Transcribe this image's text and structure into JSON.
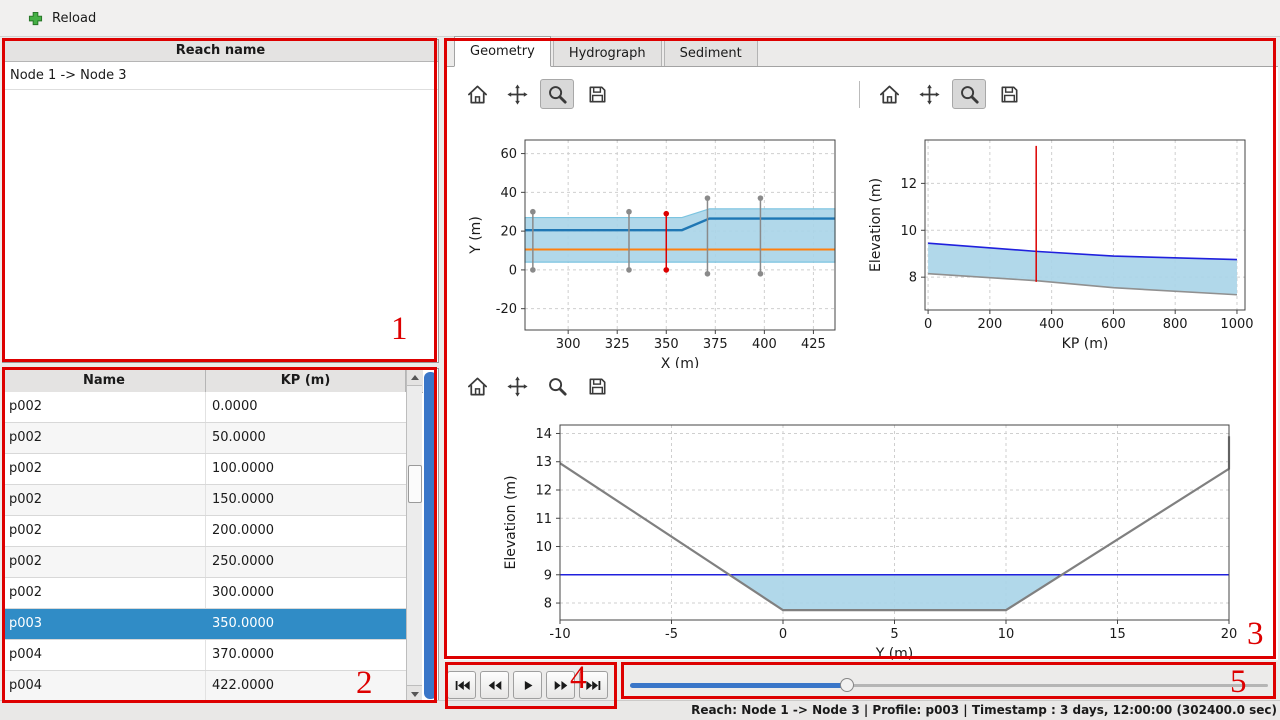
{
  "topbar": {
    "reload_label": "Reload"
  },
  "reach_list": {
    "header": "Reach name",
    "items": [
      "Node 1 -> Node 3"
    ]
  },
  "profile_table": {
    "columns": [
      "Name",
      "KP (m)"
    ],
    "rows": [
      [
        "p002",
        "0.0000"
      ],
      [
        "p002",
        "50.0000"
      ],
      [
        "p002",
        "100.0000"
      ],
      [
        "p002",
        "150.0000"
      ],
      [
        "p002",
        "200.0000"
      ],
      [
        "p002",
        "250.0000"
      ],
      [
        "p002",
        "300.0000"
      ],
      [
        "p003",
        "350.0000"
      ],
      [
        "p004",
        "370.0000"
      ],
      [
        "p004",
        "422.0000"
      ]
    ],
    "selected_row_index": 7
  },
  "tabs": {
    "items": [
      "Geometry",
      "Hydrograph",
      "Sediment"
    ],
    "active_index": 0
  },
  "plot_toolbar": {
    "icons": [
      "home",
      "pan",
      "zoom",
      "save"
    ]
  },
  "player": {
    "buttons": [
      "skip-to-start",
      "rewind",
      "play",
      "fast-forward",
      "skip-to-end"
    ]
  },
  "slider": {
    "fraction": 0.34
  },
  "status_bar": {
    "text": "Reach: Node 1 -> Node 3 | Profile: p003 | Timestamp : 3 days, 12:00:00 (302400.0 sec)"
  },
  "annotations": {
    "labels": [
      "1",
      "2",
      "3",
      "4",
      "5"
    ]
  },
  "colors": {
    "selection": "#308cc6",
    "scrollbar_blue": "#3a76c8",
    "annotation": "#dd0000",
    "water_fill": "#a8d4e8",
    "water_line": "#2020dd",
    "bed_line": "#808080"
  },
  "chart_data": [
    {
      "id": "plan-view",
      "type": "line",
      "title": "",
      "xlabel": "X (m)",
      "ylabel": "Y (m)",
      "xlim": [
        278,
        436
      ],
      "ylim": [
        -31,
        67
      ],
      "xticks": [
        300,
        325,
        350,
        375,
        400,
        425
      ],
      "yticks": [
        -20,
        0,
        20,
        40,
        60
      ],
      "grid": true,
      "fills": [
        {
          "name": "channel-band",
          "color": "#a8d4e8",
          "opacity": 0.9,
          "edge": "#7cc4e0",
          "points": [
            [
              278,
              27
            ],
            [
              358,
              27
            ],
            [
              372,
              31.5
            ],
            [
              436,
              31.5
            ],
            [
              436,
              4
            ],
            [
              278,
              4
            ]
          ]
        }
      ],
      "series": [
        {
          "name": "bank-line",
          "color": "#1f77b4",
          "width": 2.4,
          "points": [
            [
              278,
              20.5
            ],
            [
              358,
              20.5
            ],
            [
              372,
              26.5
            ],
            [
              436,
              26.5
            ]
          ]
        },
        {
          "name": "center-line",
          "color": "#ff7f0e",
          "width": 2,
          "points": [
            [
              278,
              10.5
            ],
            [
              436,
              10.5
            ]
          ]
        }
      ],
      "vlines": [
        {
          "name": "profile-marker",
          "x": 282,
          "y0": 0,
          "y1": 30,
          "color": "#8a8a8a",
          "markers": true
        },
        {
          "name": "profile-marker",
          "x": 331,
          "y0": 0,
          "y1": 30,
          "color": "#8a8a8a",
          "markers": true
        },
        {
          "name": "selected-profile-marker",
          "x": 350,
          "y0": 0,
          "y1": 29,
          "color": "#dd0000",
          "markers": true
        },
        {
          "name": "profile-marker",
          "x": 371,
          "y0": -2,
          "y1": 37,
          "color": "#8a8a8a",
          "markers": true
        },
        {
          "name": "profile-marker",
          "x": 398,
          "y0": -2,
          "y1": 37,
          "color": "#8a8a8a",
          "markers": true
        }
      ]
    },
    {
      "id": "longitudinal-profile",
      "type": "line",
      "title": "",
      "xlabel": "KP (m)",
      "ylabel": "Elevation (m)",
      "xlim": [
        -10,
        1026
      ],
      "ylim": [
        6.6,
        13.85
      ],
      "xticks": [
        0,
        200,
        400,
        600,
        800,
        1000
      ],
      "yticks": [
        8,
        10,
        12
      ],
      "grid": true,
      "fills": [
        {
          "name": "water-body",
          "color": "#a8d4e8",
          "opacity": 0.9,
          "points": [
            [
              0,
              9.45
            ],
            [
              350,
              9.1
            ],
            [
              600,
              8.9
            ],
            [
              1000,
              8.75
            ],
            [
              1000,
              7.25
            ],
            [
              600,
              7.55
            ],
            [
              350,
              7.85
            ],
            [
              0,
              8.15
            ]
          ]
        }
      ],
      "series": [
        {
          "name": "water-surface",
          "color": "#2020dd",
          "width": 1.6,
          "points": [
            [
              0,
              9.45
            ],
            [
              350,
              9.1
            ],
            [
              600,
              8.9
            ],
            [
              1000,
              8.75
            ]
          ]
        },
        {
          "name": "river-bed",
          "color": "#909090",
          "width": 1.6,
          "points": [
            [
              0,
              8.15
            ],
            [
              350,
              7.85
            ],
            [
              600,
              7.55
            ],
            [
              1000,
              7.25
            ]
          ]
        }
      ],
      "vlines": [
        {
          "name": "selected-profile-marker",
          "x": 350,
          "y0": 7.8,
          "y1": 13.6,
          "color": "#dd0000",
          "markers": false
        }
      ]
    },
    {
      "id": "cross-section",
      "type": "line",
      "title": "",
      "xlabel": "Y (m)",
      "ylabel": "Elevation (m)",
      "xlim": [
        -10,
        20
      ],
      "ylim": [
        7.4,
        14.3
      ],
      "xticks": [
        -10,
        -5,
        0,
        5,
        10,
        15,
        20
      ],
      "yticks": [
        8,
        9,
        10,
        11,
        12,
        13,
        14
      ],
      "grid": true,
      "fills": [
        {
          "name": "water-area",
          "color": "#a8d4e8",
          "opacity": 0.9,
          "points": [
            [
              -2.45,
              9
            ],
            [
              0,
              7.75
            ],
            [
              10,
              7.75
            ],
            [
              12.5,
              9
            ]
          ]
        }
      ],
      "series": [
        {
          "name": "water-level",
          "color": "#2020dd",
          "width": 1.5,
          "points": [
            [
              -10,
              9
            ],
            [
              20,
              9
            ]
          ]
        },
        {
          "name": "bed-profile",
          "color": "#808080",
          "width": 2.2,
          "points": [
            [
              -10,
              12.95
            ],
            [
              0,
              7.75
            ],
            [
              10,
              7.75
            ],
            [
              20,
              12.75
            ],
            [
              20,
              13.9
            ]
          ]
        }
      ],
      "vlines": []
    }
  ]
}
